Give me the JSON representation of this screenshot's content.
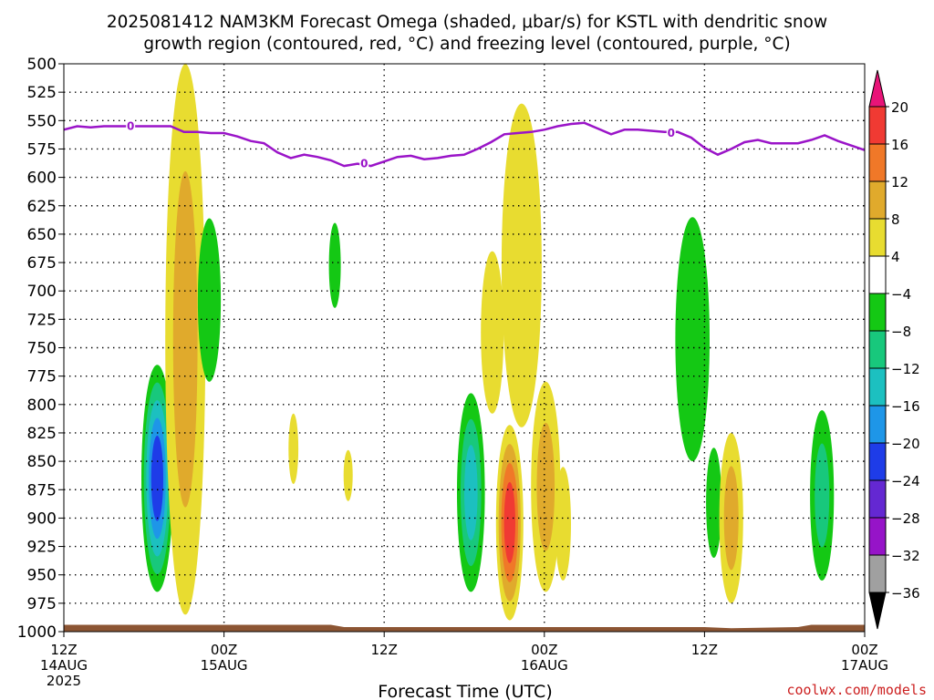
{
  "title_line1": "2025081412 NAM3KM Forecast Omega (shaded, μbar/s) for KSTL with dendritic snow",
  "title_line2": "growth region (contoured, red, °C) and freezing level (contoured, purple, °C)",
  "xlabel": "Forecast Time (UTC)",
  "credit": "coolwx.com/models",
  "colors": {
    "freezing": "#9a14c8",
    "terrain": "#8c5533"
  },
  "chart_data": {
    "type": "heatmap",
    "title": "2025081412 NAM3KM Forecast Omega (shaded, μbar/s) for KSTL with dendritic snow growth region (contoured, red, °C) and freezing level (contoured, purple, °C)",
    "xlabel": "Forecast Time (UTC)",
    "ylabel": "",
    "x_unit": "forecast hour",
    "xlim": [
      0,
      60
    ],
    "ylim": [
      1000,
      500
    ],
    "x_ticks": [
      {
        "hour": 0,
        "label": [
          "12Z",
          "14AUG",
          "2025"
        ]
      },
      {
        "hour": 12,
        "label": [
          "00Z",
          "15AUG"
        ]
      },
      {
        "hour": 24,
        "label": [
          "12Z"
        ]
      },
      {
        "hour": 36,
        "label": [
          "00Z",
          "16AUG"
        ]
      },
      {
        "hour": 48,
        "label": [
          "12Z"
        ]
      },
      {
        "hour": 60,
        "label": [
          "00Z",
          "17AUG"
        ]
      }
    ],
    "y_ticks": [
      500,
      525,
      550,
      575,
      600,
      625,
      650,
      675,
      700,
      725,
      750,
      775,
      800,
      825,
      850,
      875,
      900,
      925,
      950,
      975,
      1000
    ],
    "colorbar": {
      "labels": [
        "20",
        "16",
        "12",
        "8",
        "4",
        "−4",
        "−8",
        "−12",
        "−16",
        "−20",
        "−24",
        "−28",
        "−32",
        "−36"
      ],
      "bands": [
        {
          "lo": 16,
          "hi": 20,
          "color": "#f03a33"
        },
        {
          "lo": 12,
          "hi": 16,
          "color": "#f07828"
        },
        {
          "lo": 8,
          "hi": 12,
          "color": "#e0aa2c"
        },
        {
          "lo": 4,
          "hi": 8,
          "color": "#e8dc30"
        },
        {
          "lo": -4,
          "hi": 4,
          "color": "#ffffff"
        },
        {
          "lo": -8,
          "hi": -4,
          "color": "#14c814"
        },
        {
          "lo": -12,
          "hi": -8,
          "color": "#18c87c"
        },
        {
          "lo": -16,
          "hi": -12,
          "color": "#1cc0c0"
        },
        {
          "lo": -20,
          "hi": -16,
          "color": "#1e96e8"
        },
        {
          "lo": -24,
          "hi": -20,
          "color": "#1e3ce8"
        },
        {
          "lo": -28,
          "hi": -24,
          "color": "#6428d2"
        },
        {
          "lo": -32,
          "hi": -28,
          "color": "#9614c8"
        },
        {
          "lo": -36,
          "hi": -32,
          "color": "#a0a0a0"
        }
      ],
      "over_color": "#e81478",
      "under_color": "#000000"
    },
    "freezing_level": {
      "label": "0",
      "label_points": [
        {
          "hour": 5.0,
          "p": 555
        },
        {
          "hour": 22.5,
          "p": 588
        },
        {
          "hour": 45.5,
          "p": 561
        }
      ],
      "hours": [
        0,
        1,
        2,
        3,
        4,
        5,
        6,
        7,
        8,
        9,
        10,
        11,
        12,
        13,
        14,
        15,
        16,
        17,
        18,
        19,
        20,
        21,
        22,
        23,
        24,
        25,
        26,
        27,
        28,
        29,
        30,
        31,
        32,
        33,
        34,
        35,
        36,
        37,
        38,
        39,
        40,
        41,
        42,
        43,
        44,
        45,
        46,
        47,
        48,
        49,
        50,
        51,
        52,
        53,
        54,
        55,
        56,
        57,
        58,
        59,
        60
      ],
      "pressure": [
        558,
        555,
        556,
        555,
        555,
        555,
        555,
        555,
        555,
        560,
        560,
        561,
        561,
        564,
        568,
        570,
        578,
        583,
        580,
        582,
        585,
        590,
        588,
        590,
        586,
        582,
        581,
        584,
        583,
        581,
        580,
        575,
        569,
        562,
        561,
        560,
        558,
        555,
        553,
        552,
        557,
        562,
        558,
        558,
        559,
        560,
        560,
        565,
        574,
        580,
        575,
        569,
        567,
        570,
        570,
        570,
        567,
        563,
        568,
        572,
        576
      ]
    },
    "terrain_surface": {
      "hours": [
        0,
        10,
        20,
        21,
        30,
        48,
        50,
        55,
        56,
        60
      ],
      "pressure": [
        994,
        994,
        994,
        996,
        996,
        996,
        997,
        996,
        994,
        994
      ]
    },
    "omega_regions": [
      {
        "name": "upward motion 14AUG evening",
        "hour": 7.0,
        "p_top": 765,
        "p_bottom": 965,
        "min_value": -24
      },
      {
        "name": "downward motion 14AUG evening",
        "hour": 9.1,
        "p_top": 500,
        "p_bottom": 985,
        "max_value": 12
      },
      {
        "name": "sinking east of 15AUG 00Z",
        "hour": 10.9,
        "p_top": 636,
        "p_bottom": 780,
        "min_value": -8
      },
      {
        "name": "thin green streak 15AUG morning",
        "hour": 20.3,
        "p_top": 640,
        "p_bottom": 715,
        "min_value": -8
      },
      {
        "name": "small yellow cell 15AUG",
        "hour": 17.2,
        "p_top": 808,
        "p_bottom": 870,
        "max_value": 8
      },
      {
        "name": "small yellow cell 15AUG",
        "hour": 21.3,
        "p_top": 840,
        "p_bottom": 885,
        "max_value": 8
      },
      {
        "name": "upward motion 15AUG evening",
        "hour": 30.5,
        "p_top": 790,
        "p_bottom": 965,
        "min_value": -16
      },
      {
        "name": "downward motion 15AUG evening",
        "hour": 33.4,
        "p_top": 818,
        "p_bottom": 990,
        "max_value": 20
      },
      {
        "name": "downward column 15AUG evening",
        "hour": 34.3,
        "p_top": 535,
        "p_bottom": 820,
        "max_value": 8
      },
      {
        "name": "downward column 15AUG evening",
        "hour": 32.1,
        "p_top": 665,
        "p_bottom": 808,
        "max_value": 8
      },
      {
        "name": "downward motion 16AUG early",
        "hour": 36.1,
        "p_top": 780,
        "p_bottom": 965,
        "max_value": 12
      },
      {
        "name": "downward cell 16AUG",
        "hour": 37.4,
        "p_top": 855,
        "p_bottom": 955,
        "max_value": 8
      },
      {
        "name": "green streak 16AUG midday",
        "hour": 47.1,
        "p_top": 635,
        "p_bottom": 850,
        "min_value": -8
      },
      {
        "name": "green cell 16AUG",
        "hour": 48.7,
        "p_top": 838,
        "p_bottom": 935,
        "min_value": -8
      },
      {
        "name": "yellow cell 16AUG",
        "hour": 50.0,
        "p_top": 825,
        "p_bottom": 975,
        "max_value": 12
      },
      {
        "name": "upward motion 16AUG evening",
        "hour": 56.8,
        "p_top": 805,
        "p_bottom": 955,
        "min_value": -12
      }
    ]
  }
}
